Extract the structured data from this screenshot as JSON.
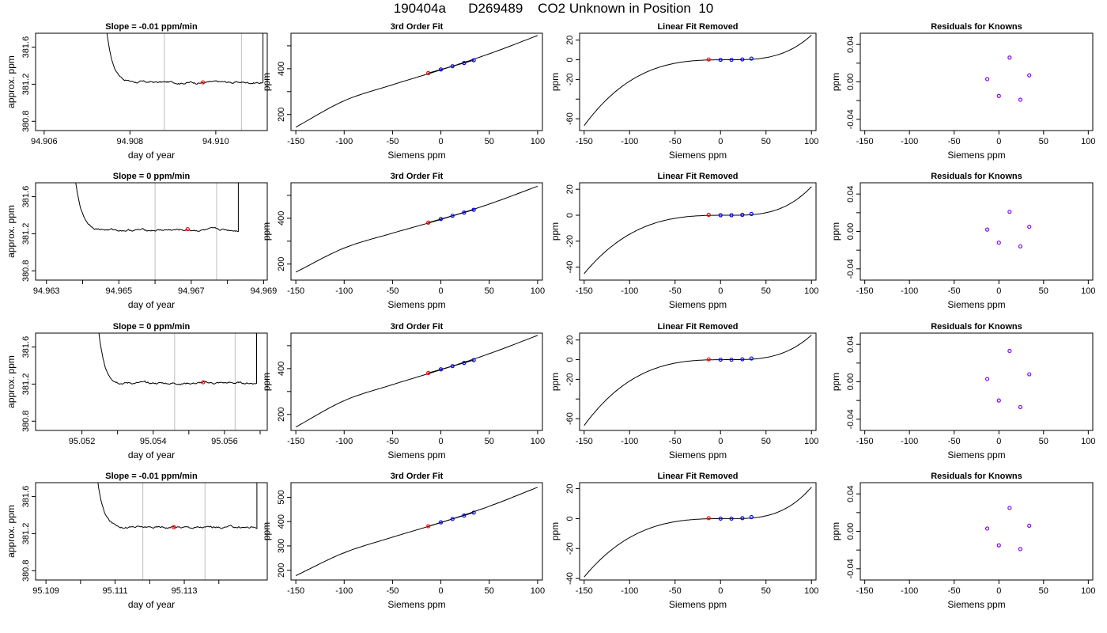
{
  "page": {
    "title": "190404a      D269489    CO2 Unknown in Position  10"
  },
  "colors": {
    "axis": "#000000",
    "curve": "#000000",
    "vline": "#c8c8c8",
    "sample_point": "#ff0000",
    "known_point": "#0000ff",
    "residual_point": "#8000ff"
  },
  "chart_data": [
    {
      "row": 1,
      "type": "line",
      "title": "Slope =  -0.01  ppm/min",
      "xlabel": "day of year",
      "ylabel": "approx. ppm",
      "xlim": [
        94.9058,
        94.9112
      ],
      "ylim": [
        380.7,
        381.75
      ],
      "xticks": [
        "94.906",
        "94.908",
        "94.910"
      ],
      "xtick_values": [
        94.906,
        94.908,
        94.91
      ],
      "yticks": [
        "380.8",
        "381.2",
        "381.6"
      ],
      "ytick_values": [
        380.8,
        381.2,
        381.6
      ],
      "vlines": [
        94.9088,
        94.9106
      ],
      "marker": {
        "x": 94.9097,
        "y": 381.22
      },
      "baseline": 381.22,
      "noise": 0.01,
      "trace": {
        "x_start": 94.9073,
        "x_end": 94.9111,
        "rise_end": 94.9111,
        "decay": 0.00015,
        "amp": 1.6
      }
    },
    {
      "row": 1,
      "type": "line",
      "title": "3rd Order Fit",
      "xlabel": "Siemens ppm",
      "ylabel": "ppm",
      "xlim": [
        -155,
        105
      ],
      "ylim": [
        130,
        555
      ],
      "xticks": [
        "-150",
        "-100",
        "-50",
        "0",
        "50",
        "100"
      ],
      "xtick_values": [
        -150,
        -100,
        -50,
        0,
        50,
        100
      ],
      "yticks": [
        "200",
        "400"
      ],
      "ytick_values": [
        200,
        400
      ],
      "minor_yticks": [
        300,
        500
      ],
      "curve_points": [
        [
          -150,
          145
        ],
        [
          -100,
          260
        ],
        [
          -50,
          330
        ],
        [
          0,
          395
        ],
        [
          50,
          465
        ],
        [
          100,
          545
        ]
      ],
      "knowns": [
        [
          0,
          397
        ],
        [
          12,
          411
        ],
        [
          24,
          425
        ],
        [
          34,
          437
        ]
      ],
      "sample": [
        -13,
        381
      ]
    },
    {
      "row": 1,
      "type": "line",
      "title": "Linear Fit Removed",
      "xlabel": "Siemens ppm",
      "ylabel": "ppm",
      "xlim": [
        -155,
        105
      ],
      "ylim": [
        -72,
        27
      ],
      "xticks": [
        "-150",
        "-100",
        "-50",
        "0",
        "50",
        "100"
      ],
      "xtick_values": [
        -150,
        -100,
        -50,
        0,
        50,
        100
      ],
      "yticks": [
        "-60",
        "-20",
        "0",
        "20"
      ],
      "ytick_values": [
        -60,
        -20,
        0,
        20
      ],
      "minor_yticks": [
        -40
      ],
      "cubic_left": -67,
      "cubic_right": 25,
      "knowns": [
        [
          0,
          0
        ],
        [
          12,
          0
        ],
        [
          24,
          0.4
        ],
        [
          34,
          1.2
        ]
      ],
      "sample": [
        -13,
        0.3
      ]
    },
    {
      "row": 1,
      "type": "scatter",
      "title": "Residuals for Knowns",
      "xlabel": "Siemens ppm",
      "ylabel": "ppm",
      "xlim": [
        -155,
        105
      ],
      "ylim": [
        -0.052,
        0.052
      ],
      "xticks": [
        "-150",
        "-100",
        "-50",
        "0",
        "50",
        "100"
      ],
      "xtick_values": [
        -150,
        -100,
        -50,
        0,
        50,
        100
      ],
      "yticks": [
        "-0.04",
        "0.00",
        "0.04"
      ],
      "ytick_values": [
        -0.04,
        0.0,
        0.04
      ],
      "minor_yticks": [
        -0.02,
        0.02
      ],
      "residuals": [
        [
          -13,
          0.003
        ],
        [
          0,
          -0.015
        ],
        [
          12,
          0.026
        ],
        [
          24,
          -0.019
        ],
        [
          34,
          0.007
        ]
      ]
    },
    {
      "row": 2,
      "type": "line",
      "title": "Slope =  0  ppm/min",
      "xlabel": "day of year",
      "ylabel": "approx. ppm",
      "xlim": [
        94.9627,
        94.9691
      ],
      "ylim": [
        380.7,
        381.75
      ],
      "xticks": [
        "94.963",
        "94.965",
        "94.967",
        "94.969"
      ],
      "xtick_values": [
        94.963,
        94.965,
        94.967,
        94.969
      ],
      "minor_xticks": [
        94.964,
        94.966,
        94.968
      ],
      "yticks": [
        "380.8",
        "381.2",
        "381.6"
      ],
      "ytick_values": [
        380.8,
        381.2,
        381.6
      ],
      "vlines": [
        94.966,
        94.9677
      ],
      "marker": {
        "x": 94.9669,
        "y": 381.25
      },
      "baseline": 381.24,
      "noise": 0.01,
      "trace": {
        "x_start": 94.9636,
        "x_end": 94.9683,
        "rise_end": 94.9683,
        "decay": 0.00018,
        "amp": 1.6
      }
    },
    {
      "row": 2,
      "type": "line",
      "title": "3rd Order Fit",
      "xlabel": "Siemens ppm",
      "ylabel": "ppm",
      "xlim": [
        -155,
        105
      ],
      "ylim": [
        130,
        555
      ],
      "xticks": [
        "-150",
        "-100",
        "-50",
        "0",
        "50",
        "100"
      ],
      "xtick_values": [
        -150,
        -100,
        -50,
        0,
        50,
        100
      ],
      "yticks": [
        "200",
        "400"
      ],
      "ytick_values": [
        200,
        400
      ],
      "minor_yticks": [
        300,
        500
      ],
      "curve_points": [
        [
          -150,
          165
        ],
        [
          -100,
          270
        ],
        [
          -50,
          335
        ],
        [
          0,
          395
        ],
        [
          50,
          462
        ],
        [
          100,
          540
        ]
      ],
      "knowns": [
        [
          0,
          397
        ],
        [
          12,
          411
        ],
        [
          24,
          425
        ],
        [
          34,
          437
        ]
      ],
      "sample": [
        -13,
        381
      ]
    },
    {
      "row": 2,
      "type": "line",
      "title": "Linear Fit Removed",
      "xlabel": "Siemens ppm",
      "ylabel": "ppm",
      "xlim": [
        -155,
        105
      ],
      "ylim": [
        -50,
        25
      ],
      "xticks": [
        "-150",
        "-100",
        "-50",
        "0",
        "50",
        "100"
      ],
      "xtick_values": [
        -150,
        -100,
        -50,
        0,
        50,
        100
      ],
      "yticks": [
        "-40",
        "-20",
        "0",
        "20"
      ],
      "ytick_values": [
        -40,
        -20,
        0,
        20
      ],
      "cubic_left": -45,
      "cubic_right": 22,
      "knowns": [
        [
          0,
          0
        ],
        [
          12,
          0
        ],
        [
          24,
          0.3
        ],
        [
          34,
          1.0
        ]
      ],
      "sample": [
        -13,
        0.3
      ]
    },
    {
      "row": 2,
      "type": "scatter",
      "title": "Residuals for Knowns",
      "xlabel": "Siemens ppm",
      "ylabel": "ppm",
      "xlim": [
        -155,
        105
      ],
      "ylim": [
        -0.052,
        0.052
      ],
      "xticks": [
        "-150",
        "-100",
        "-50",
        "0",
        "50",
        "100"
      ],
      "xtick_values": [
        -150,
        -100,
        -50,
        0,
        50,
        100
      ],
      "yticks": [
        "-0.04",
        "0.00",
        "0.04"
      ],
      "ytick_values": [
        -0.04,
        0.0,
        0.04
      ],
      "minor_yticks": [
        -0.02,
        0.02
      ],
      "residuals": [
        [
          -13,
          0.002
        ],
        [
          0,
          -0.012
        ],
        [
          12,
          0.021
        ],
        [
          24,
          -0.016
        ],
        [
          34,
          0.005
        ]
      ]
    },
    {
      "row": 3,
      "type": "line",
      "title": "Slope =  0  ppm/min",
      "xlabel": "day of year",
      "ylabel": "approx. ppm",
      "xlim": [
        95.0507,
        95.0572
      ],
      "ylim": [
        380.7,
        381.75
      ],
      "xticks": [
        "95.052",
        "95.054",
        "95.056"
      ],
      "xtick_values": [
        95.052,
        95.054,
        95.056
      ],
      "minor_xticks": [
        95.053,
        95.055,
        95.057
      ],
      "yticks": [
        "380.8",
        "381.2",
        "381.6"
      ],
      "ytick_values": [
        380.8,
        381.2,
        381.6
      ],
      "vlines": [
        95.0546,
        95.0563
      ],
      "marker": {
        "x": 95.0554,
        "y": 381.22
      },
      "baseline": 381.21,
      "noise": 0.01,
      "trace": {
        "x_start": 95.0523,
        "x_end": 95.0569,
        "rise_end": 95.0569,
        "decay": 0.00016,
        "amp": 1.6
      }
    },
    {
      "row": 3,
      "type": "line",
      "title": "3rd Order Fit",
      "xlabel": "Siemens ppm",
      "ylabel": "ppm",
      "xlim": [
        -155,
        105
      ],
      "ylim": [
        130,
        555
      ],
      "xticks": [
        "-150",
        "-100",
        "-50",
        "0",
        "50",
        "100"
      ],
      "xtick_values": [
        -150,
        -100,
        -50,
        0,
        50,
        100
      ],
      "yticks": [
        "200",
        "400"
      ],
      "ytick_values": [
        200,
        400
      ],
      "minor_yticks": [
        300,
        500
      ],
      "curve_points": [
        [
          -150,
          145
        ],
        [
          -100,
          260
        ],
        [
          -50,
          330
        ],
        [
          0,
          395
        ],
        [
          50,
          465
        ],
        [
          100,
          545
        ]
      ],
      "knowns": [
        [
          0,
          397
        ],
        [
          12,
          411
        ],
        [
          24,
          425
        ],
        [
          34,
          437
        ]
      ],
      "sample": [
        -13,
        381
      ]
    },
    {
      "row": 3,
      "type": "line",
      "title": "Linear Fit Removed",
      "xlabel": "Siemens ppm",
      "ylabel": "ppm",
      "xlim": [
        -155,
        105
      ],
      "ylim": [
        -72,
        27
      ],
      "xticks": [
        "-150",
        "-100",
        "-50",
        "0",
        "50",
        "100"
      ],
      "xtick_values": [
        -150,
        -100,
        -50,
        0,
        50,
        100
      ],
      "yticks": [
        "-60",
        "-20",
        "0",
        "20"
      ],
      "ytick_values": [
        -60,
        -20,
        0,
        20
      ],
      "minor_yticks": [
        -40
      ],
      "cubic_left": -67,
      "cubic_right": 25,
      "knowns": [
        [
          0,
          0
        ],
        [
          12,
          0
        ],
        [
          24,
          0.4
        ],
        [
          34,
          1.2
        ]
      ],
      "sample": [
        -13,
        0.3
      ]
    },
    {
      "row": 3,
      "type": "scatter",
      "title": "Residuals for Knowns",
      "xlabel": "Siemens ppm",
      "ylabel": "ppm",
      "xlim": [
        -155,
        105
      ],
      "ylim": [
        -0.052,
        0.052
      ],
      "xticks": [
        "-150",
        "-100",
        "-50",
        "0",
        "50",
        "100"
      ],
      "xtick_values": [
        -150,
        -100,
        -50,
        0,
        50,
        100
      ],
      "yticks": [
        "-0.04",
        "0.00",
        "0.04"
      ],
      "ytick_values": [
        -0.04,
        0.0,
        0.04
      ],
      "minor_yticks": [
        -0.02,
        0.02
      ],
      "residuals": [
        [
          -13,
          0.003
        ],
        [
          0,
          -0.02
        ],
        [
          12,
          0.033
        ],
        [
          24,
          -0.027
        ],
        [
          34,
          0.008
        ]
      ]
    },
    {
      "row": 4,
      "type": "line",
      "title": "Slope =  -0.01  ppm/min",
      "xlabel": "day of year",
      "ylabel": "approx. ppm",
      "xlim": [
        95.1087,
        95.1154
      ],
      "ylim": [
        380.7,
        381.75
      ],
      "xticks": [
        "95.109",
        "95.111",
        "95.113"
      ],
      "xtick_values": [
        95.109,
        95.111,
        95.113
      ],
      "minor_xticks": [
        95.11,
        95.112,
        95.114
      ],
      "yticks": [
        "380.8",
        "381.2",
        "381.6"
      ],
      "ytick_values": [
        380.8,
        381.2,
        381.6
      ],
      "vlines": [
        95.1118,
        95.1136
      ],
      "marker": {
        "x": 95.1127,
        "y": 381.27
      },
      "baseline": 381.27,
      "noise": 0.01,
      "trace": {
        "x_start": 95.1103,
        "x_end": 95.1151,
        "rise_end": 95.1151,
        "decay": 0.00017,
        "amp": 1.6
      }
    },
    {
      "row": 4,
      "type": "line",
      "title": "3rd Order Fit",
      "xlabel": "Siemens ppm",
      "ylabel": "ppm",
      "xlim": [
        -155,
        105
      ],
      "ylim": [
        160,
        560
      ],
      "xticks": [
        "-150",
        "-100",
        "-50",
        "0",
        "50",
        "100"
      ],
      "xtick_values": [
        -150,
        -100,
        -50,
        0,
        50,
        100
      ],
      "yticks": [
        "200",
        "300",
        "400",
        "500"
      ],
      "ytick_values": [
        200,
        300,
        400,
        500
      ],
      "curve_points": [
        [
          -150,
          178
        ],
        [
          -100,
          272
        ],
        [
          -50,
          336
        ],
        [
          0,
          396
        ],
        [
          50,
          463
        ],
        [
          100,
          541
        ]
      ],
      "knowns": [
        [
          0,
          397
        ],
        [
          12,
          411
        ],
        [
          24,
          425
        ],
        [
          34,
          437
        ]
      ],
      "sample": [
        -13,
        381
      ]
    },
    {
      "row": 4,
      "type": "line",
      "title": "Linear Fit Removed",
      "xlabel": "Siemens ppm",
      "ylabel": "ppm",
      "xlim": [
        -155,
        105
      ],
      "ylim": [
        -41,
        24
      ],
      "xticks": [
        "-150",
        "-100",
        "-50",
        "0",
        "50",
        "100"
      ],
      "xtick_values": [
        -150,
        -100,
        -50,
        0,
        50,
        100
      ],
      "yticks": [
        "-40",
        "-20",
        "0",
        "20"
      ],
      "ytick_values": [
        -40,
        -20,
        0,
        20
      ],
      "cubic_left": -39,
      "cubic_right": 21,
      "knowns": [
        [
          0,
          0
        ],
        [
          12,
          0
        ],
        [
          24,
          0.3
        ],
        [
          34,
          1.0
        ]
      ],
      "sample": [
        -13,
        0.3
      ]
    },
    {
      "row": 4,
      "type": "scatter",
      "title": "Residuals for Knowns",
      "xlabel": "Siemens ppm",
      "ylabel": "ppm",
      "xlim": [
        -155,
        105
      ],
      "ylim": [
        -0.052,
        0.052
      ],
      "xticks": [
        "-150",
        "-100",
        "-50",
        "0",
        "50",
        "100"
      ],
      "xtick_values": [
        -150,
        -100,
        -50,
        0,
        50,
        100
      ],
      "yticks": [
        "-0.04",
        "0.00",
        "0.04"
      ],
      "ytick_values": [
        -0.04,
        0.0,
        0.04
      ],
      "minor_yticks": [
        -0.02,
        0.02
      ],
      "residuals": [
        [
          -13,
          0.003
        ],
        [
          0,
          -0.015
        ],
        [
          12,
          0.025
        ],
        [
          24,
          -0.019
        ],
        [
          34,
          0.006
        ]
      ]
    }
  ]
}
